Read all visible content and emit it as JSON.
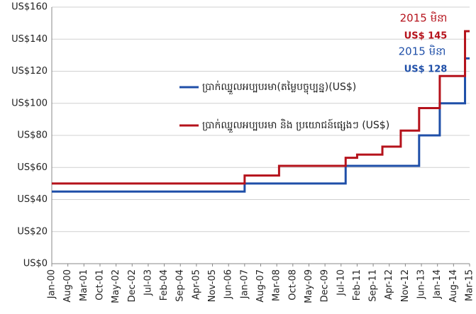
{
  "chart_data": {
    "type": "line",
    "step": "post",
    "ylim": [
      0,
      160
    ],
    "yticks": [
      {
        "value": 0,
        "label": "US$0"
      },
      {
        "value": 20,
        "label": "US$20"
      },
      {
        "value": 40,
        "label": "US$40"
      },
      {
        "value": 60,
        "label": "US$60"
      },
      {
        "value": 80,
        "label": "US$80"
      },
      {
        "value": 100,
        "label": "US$100"
      },
      {
        "value": 120,
        "label": "US$120"
      },
      {
        "value": 140,
        "label": "US$140"
      },
      {
        "value": 160,
        "label": "US$160"
      }
    ],
    "grid": true,
    "xlim": [
      "2000-01",
      "2015-03"
    ],
    "xticks": [
      {
        "value": "2000-01",
        "label": "Jan-00"
      },
      {
        "value": "2000-08",
        "label": "Aug-00"
      },
      {
        "value": "2001-03",
        "label": "Mar-01"
      },
      {
        "value": "2001-10",
        "label": "Oct-01"
      },
      {
        "value": "2002-05",
        "label": "May-02"
      },
      {
        "value": "2002-12",
        "label": "Dec-02"
      },
      {
        "value": "2003-07",
        "label": "Jul-03"
      },
      {
        "value": "2004-02",
        "label": "Feb-04"
      },
      {
        "value": "2004-09",
        "label": "Sep-04"
      },
      {
        "value": "2005-04",
        "label": "Apr-05"
      },
      {
        "value": "2005-11",
        "label": "Nov-05"
      },
      {
        "value": "2006-06",
        "label": "Jun-06"
      },
      {
        "value": "2007-01",
        "label": "Jan-07"
      },
      {
        "value": "2007-08",
        "label": "Aug-07"
      },
      {
        "value": "2008-03",
        "label": "Mar-08"
      },
      {
        "value": "2008-10",
        "label": "Oct-08"
      },
      {
        "value": "2009-05",
        "label": "May-09"
      },
      {
        "value": "2009-12",
        "label": "Dec-09"
      },
      {
        "value": "2010-07",
        "label": "Jul-10"
      },
      {
        "value": "2011-02",
        "label": "Feb-11"
      },
      {
        "value": "2011-09",
        "label": "Sep-11"
      },
      {
        "value": "2012-04",
        "label": "Apr-12"
      },
      {
        "value": "2012-11",
        "label": "Nov-12"
      },
      {
        "value": "2013-06",
        "label": "Jun-13"
      },
      {
        "value": "2014-01",
        "label": "Jan-14"
      },
      {
        "value": "2014-08",
        "label": "Aug-14"
      },
      {
        "value": "2015-03",
        "label": "Mar-15"
      }
    ],
    "series": [
      {
        "name": "ប្រាក់ឈ្នួលអប្បបរមា(តម្លៃបច្ចុប្បន្ន)(US$)",
        "color": "#1f4fa8",
        "x": [
          "2000-01",
          "2007-01",
          "2010-09",
          "2013-05",
          "2014-02",
          "2015-01",
          "2015-03"
        ],
        "values": [
          45,
          50,
          61,
          80,
          100,
          128,
          128
        ]
      },
      {
        "name": "ប្រាក់ឈ្នួលអប្បបរមា និង ប្រយោជន៍ផ្សេងៗ (US$)",
        "color": "#b5121b",
        "x": [
          "2000-01",
          "2007-01",
          "2008-04",
          "2010-09",
          "2011-02",
          "2012-01",
          "2012-09",
          "2013-05",
          "2014-02",
          "2015-01",
          "2015-03"
        ],
        "values": [
          50,
          55,
          61,
          66,
          68,
          73,
          83,
          97,
          117,
          145,
          145
        ]
      }
    ],
    "annotations": [
      {
        "text": "2015 មិនា",
        "color": "#b5121b"
      },
      {
        "text": "US$ 145",
        "color": "#b5121b"
      },
      {
        "text": "2015 មិនា",
        "color": "#1f4fa8"
      },
      {
        "text": "US$ 128",
        "color": "#1f4fa8"
      }
    ]
  }
}
